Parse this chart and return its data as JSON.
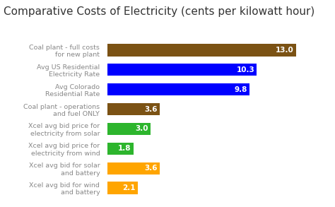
{
  "title": "Comparative Costs of Electricity (cents per kilowatt hour)",
  "categories": [
    "Coal plant - full costs\nfor new plant",
    "Avg US Residential\nElectricity Rate",
    "Avg Colorado\nResidential Rate",
    "Coal plant - operations\nand fuel ONLY",
    "Xcel avg bid price for\nelectricity from solar",
    "Xcel avg bid price for\nelectricity from wind",
    "Xcel avg bid for solar\nand battery",
    "Xcel avg bid for wind\nand battery"
  ],
  "values": [
    13.0,
    10.3,
    9.8,
    3.6,
    3.0,
    1.8,
    3.6,
    2.1
  ],
  "colors": [
    "#7B5214",
    "#0000FF",
    "#0000FF",
    "#7B5214",
    "#2DB52D",
    "#2DB52D",
    "#FFA500",
    "#FFA500"
  ],
  "background_color": "#ffffff",
  "title_fontsize": 11,
  "bar_label_fontsize": 7.5,
  "category_fontsize": 6.8,
  "xlim": [
    0,
    15.0
  ]
}
